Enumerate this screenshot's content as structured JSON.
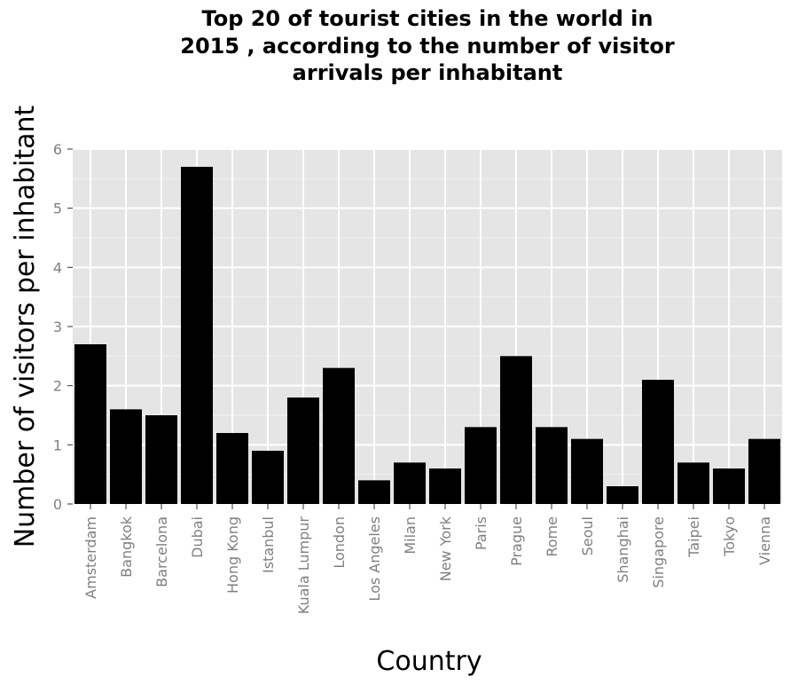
{
  "chart_data": {
    "type": "bar",
    "title_lines": [
      "Top 20 of tourist cities in the world in",
      "2015 , according to the number of visitor",
      "arrivals per inhabitant"
    ],
    "xlabel": "Country",
    "ylabel": "Number of visitors per inhabitant",
    "categories": [
      "Amsterdam",
      "Bangkok",
      "Barcelona",
      "Dubai",
      "Hong Kong",
      "Istanbul",
      "Kuala Lumpur",
      "London",
      "Los Angeles",
      "Milan",
      "New York",
      "Paris",
      "Prague",
      "Rome",
      "Seoul",
      "Shanghai",
      "Singapore",
      "Taipei",
      "Tokyo",
      "Vienna"
    ],
    "values": [
      2.7,
      1.6,
      1.5,
      5.7,
      1.2,
      0.9,
      1.8,
      2.3,
      0.4,
      0.7,
      0.6,
      1.3,
      2.5,
      1.3,
      1.1,
      0.3,
      2.1,
      0.7,
      0.6,
      1.1
    ],
    "ylim": [
      0,
      6
    ],
    "yticks": [
      0,
      1,
      2,
      3,
      4,
      5,
      6
    ],
    "grid": true,
    "colors": {
      "bar": "#000000",
      "panel": "#e5e5e5",
      "grid": "#ffffff",
      "tick_label": "#7f7f7f"
    }
  }
}
